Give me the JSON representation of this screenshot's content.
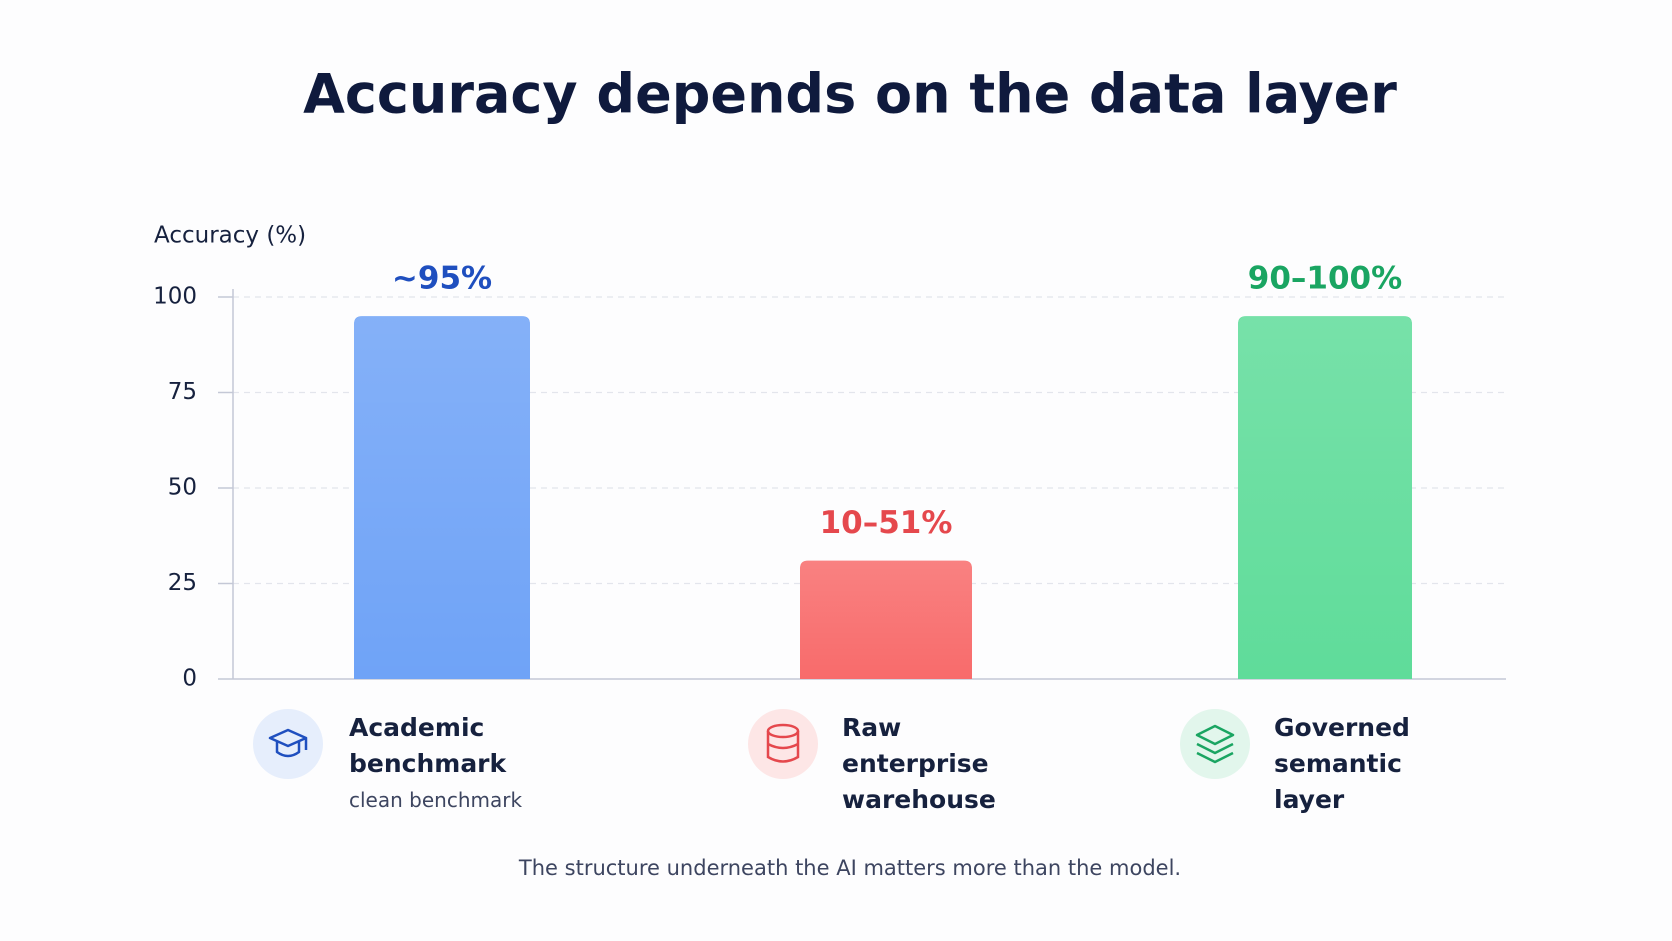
{
  "chart_data": {
    "type": "bar",
    "title": "Accuracy depends on the data layer",
    "y_label": "Accuracy (%)",
    "categories": [
      "Academic benchmark",
      "Raw enterprise warehouse",
      "Governed semantic layer"
    ],
    "category_notes": [
      "clean benchmark",
      null,
      null
    ],
    "values": [
      95,
      31,
      95
    ],
    "value_labels": [
      "~95%",
      "10–51%",
      "90–100%"
    ],
    "colors": [
      "#6fa3f7",
      "#f86b6b",
      "#5fdc9a"
    ],
    "label_colors": [
      "#1f4fbf",
      "#e5484d",
      "#1aa562"
    ],
    "ylim": [
      0,
      100
    ],
    "yticks": [
      0,
      25,
      50,
      75,
      100
    ],
    "grid": true,
    "footnote": "The structure underneath the AI matters more than the model."
  }
}
